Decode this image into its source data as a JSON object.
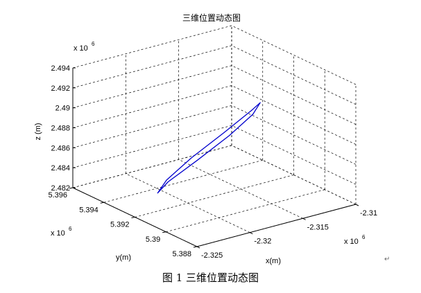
{
  "chart_data": {
    "type": "line3d",
    "title": "三维位置动态图",
    "xlabel": "x(m)",
    "ylabel": "y(m)",
    "zlabel": "z (m)",
    "x_exponent": "x 10",
    "x_exponent_power": "6",
    "y_exponent": "x 10",
    "y_exponent_power": "6",
    "z_exponent": "x 10",
    "z_exponent_power": "6",
    "xlim": [
      -2.325,
      -2.31
    ],
    "ylim": [
      5.388,
      5.396
    ],
    "zlim": [
      2.482,
      2.494
    ],
    "xticks": [
      -2.325,
      -2.32,
      -2.315,
      -2.31
    ],
    "xtick_labels": [
      "-2.325",
      "-2.32",
      "-2.315",
      "-2.31"
    ],
    "yticks": [
      5.388,
      5.39,
      5.392,
      5.394,
      5.396
    ],
    "ytick_labels": [
      "5.388",
      "5.39",
      "5.392",
      "5.394",
      "5.396"
    ],
    "zticks": [
      2.482,
      2.484,
      2.486,
      2.488,
      2.49,
      2.492,
      2.494
    ],
    "ztick_labels": [
      "2.482",
      "2.484",
      "2.486",
      "2.488",
      "2.49",
      "2.492",
      "2.494"
    ],
    "grid": true,
    "series": [
      {
        "color": "#0000cc",
        "shape": "closed narrow loop",
        "x": [
          -2.3208,
          -2.3204,
          -2.319,
          -2.3174,
          -2.3162,
          -2.3158,
          -2.3162,
          -2.3176,
          -2.3192,
          -2.3204,
          -2.3208
        ],
        "y": [
          5.3934,
          5.393,
          5.3921,
          5.3911,
          5.3904,
          5.3902,
          5.3905,
          5.3913,
          5.3923,
          5.3931,
          5.3934
        ],
        "z": [
          2.4822,
          2.4835,
          2.4859,
          2.4887,
          2.491,
          2.4922,
          2.4913,
          2.4889,
          2.4861,
          2.4836,
          2.4822
        ]
      }
    ]
  },
  "caption": {
    "text": "图 1  三维位置动态图",
    "mark": "↵"
  }
}
